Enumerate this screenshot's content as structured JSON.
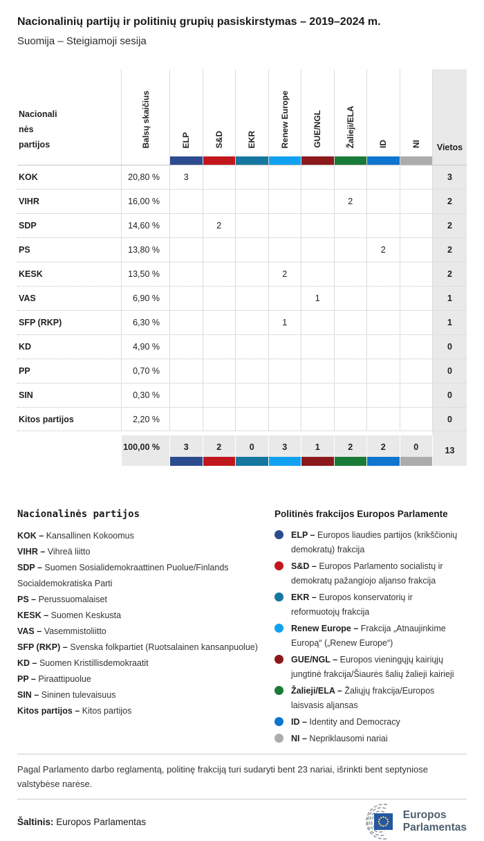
{
  "title": "Nacionalinių partijų ir politinių grupių pasiskirstymas – 2019–2024 m.",
  "subtitle": "Suomija – Steigiamoji sesija",
  "table": {
    "first_col_header": "Nacionali\nnės\npartijos",
    "votes_header": "Balsų skaičius",
    "seats_header": "Vietos",
    "groups": [
      {
        "label": "ELP",
        "color": "#2C4C8F"
      },
      {
        "label": "S&D",
        "color": "#C2161D"
      },
      {
        "label": "EKR",
        "color": "#15779F"
      },
      {
        "label": "Renew Europe",
        "color": "#12A1F0"
      },
      {
        "label": "GUE/NGL",
        "color": "#8C191C"
      },
      {
        "label": "Žalieji/ELA",
        "color": "#197B38"
      },
      {
        "label": "ID",
        "color": "#0E76CF"
      },
      {
        "label": "NI",
        "color": "#ACACAC"
      }
    ],
    "rows": [
      {
        "party": "KOK",
        "votes": "20,80 %",
        "cells": [
          "3",
          "",
          "",
          "",
          "",
          "",
          "",
          ""
        ],
        "seats": "3"
      },
      {
        "party": "VIHR",
        "votes": "16,00 %",
        "cells": [
          "",
          "",
          "",
          "",
          "",
          "2",
          "",
          ""
        ],
        "seats": "2"
      },
      {
        "party": "SDP",
        "votes": "14,60 %",
        "cells": [
          "",
          "2",
          "",
          "",
          "",
          "",
          "",
          ""
        ],
        "seats": "2"
      },
      {
        "party": "PS",
        "votes": "13,80 %",
        "cells": [
          "",
          "",
          "",
          "",
          "",
          "",
          "2",
          ""
        ],
        "seats": "2"
      },
      {
        "party": "KESK",
        "votes": "13,50 %",
        "cells": [
          "",
          "",
          "",
          "2",
          "",
          "",
          "",
          ""
        ],
        "seats": "2"
      },
      {
        "party": "VAS",
        "votes": "6,90 %",
        "cells": [
          "",
          "",
          "",
          "",
          "1",
          "",
          "",
          ""
        ],
        "seats": "1"
      },
      {
        "party": "SFP (RKP)",
        "votes": "6,30 %",
        "cells": [
          "",
          "",
          "",
          "1",
          "",
          "",
          "",
          ""
        ],
        "seats": "1"
      },
      {
        "party": "KD",
        "votes": "4,90 %",
        "cells": [
          "",
          "",
          "",
          "",
          "",
          "",
          "",
          ""
        ],
        "seats": "0"
      },
      {
        "party": "PP",
        "votes": "0,70 %",
        "cells": [
          "",
          "",
          "",
          "",
          "",
          "",
          "",
          ""
        ],
        "seats": "0"
      },
      {
        "party": "SIN",
        "votes": "0,30 %",
        "cells": [
          "",
          "",
          "",
          "",
          "",
          "",
          "",
          ""
        ],
        "seats": "0"
      },
      {
        "party": "Kitos partijos",
        "votes": "2,20 %",
        "cells": [
          "",
          "",
          "",
          "",
          "",
          "",
          "",
          ""
        ],
        "seats": "0"
      }
    ],
    "total": {
      "votes": "100,00 %",
      "cells": [
        "3",
        "2",
        "0",
        "3",
        "1",
        "2",
        "2",
        "0"
      ],
      "seats": "13"
    }
  },
  "national_legend": {
    "title": "Nacionalinės partijos",
    "items": [
      {
        "abbr": "KOK –",
        "name": "Kansallinen Kokoomus"
      },
      {
        "abbr": "VIHR –",
        "name": "Vihreä liitto"
      },
      {
        "abbr": "SDP –",
        "name": "Suomen Sosialidemokraattinen Puolue/Finlands Socialdemokratiska Parti"
      },
      {
        "abbr": "PS –",
        "name": "Perussuomalaiset"
      },
      {
        "abbr": "KESK –",
        "name": "Suomen Keskusta"
      },
      {
        "abbr": "VAS –",
        "name": "Vasemmistoliitto"
      },
      {
        "abbr": "SFP (RKP) –",
        "name": "Svenska folkpartiet (Ruotsalainen kansanpuolue)"
      },
      {
        "abbr": "KD –",
        "name": "Suomen Kristillisdemokraatit"
      },
      {
        "abbr": "PP –",
        "name": "Piraattipuolue"
      },
      {
        "abbr": "SIN –",
        "name": "Sininen tulevaisuus"
      },
      {
        "abbr": "Kitos partijos –",
        "name": "Kitos partijos"
      }
    ]
  },
  "groups_legend": {
    "title": "Politinės frakcijos Europos Parlamente",
    "items": [
      {
        "abbr": "ELP –",
        "name": "Europos liaudies partijos (krikščionių demokratų) frakcija",
        "color": "#2C4C8F"
      },
      {
        "abbr": "S&D –",
        "name": "Europos Parlamento socialistų ir demokratų pažangiojo aljanso frakcija",
        "color": "#C2161D"
      },
      {
        "abbr": "EKR –",
        "name": "Europos konservatorių ir reformuotojų frakcija",
        "color": "#15779F"
      },
      {
        "abbr": "Renew Europe –",
        "name": "Frakcija „Atnaujinkime Europą“ („Renew Europe“)",
        "color": "#12A1F0"
      },
      {
        "abbr": "GUE/NGL –",
        "name": "Europos vieningųjų kairiųjų jungtinė frakcija/Šiaurės šalių žalieji kairieji",
        "color": "#8C191C"
      },
      {
        "abbr": "Žalieji/ELA –",
        "name": "Žaliųjų frakcija/Europos laisvasis aljansas",
        "color": "#197B38"
      },
      {
        "abbr": "ID –",
        "name": "Identity and Democracy",
        "color": "#0E76CF"
      },
      {
        "abbr": "NI –",
        "name": "Nepriklausomi nariai",
        "color": "#ACACAC"
      }
    ]
  },
  "footnote": "Pagal Parlamento darbo reglamentą, politinę frakciją turi sudaryti bent 23 nariai, išrinkti bent septyniose valstybėse narėse.",
  "source": {
    "label": "Šaltinis:",
    "value": "Europos Parlamentas"
  },
  "logo": {
    "line1": "Europos",
    "line2": "Parlamentas"
  },
  "chart_data": {
    "type": "table",
    "title": "Nacionalinių partijų ir politinių grupių pasiskirstymas – 2019–2024 m.",
    "subtitle": "Suomija – Steigiamoji sesija",
    "columns": [
      "Nacionalinės partijos",
      "Balsų skaičius",
      "ELP",
      "S&D",
      "EKR",
      "Renew Europe",
      "GUE/NGL",
      "Žalieji/ELA",
      "ID",
      "NI",
      "Vietos"
    ],
    "rows": [
      [
        "KOK",
        "20,80 %",
        3,
        null,
        null,
        null,
        null,
        null,
        null,
        null,
        3
      ],
      [
        "VIHR",
        "16,00 %",
        null,
        null,
        null,
        null,
        null,
        2,
        null,
        null,
        2
      ],
      [
        "SDP",
        "14,60 %",
        null,
        2,
        null,
        null,
        null,
        null,
        null,
        null,
        2
      ],
      [
        "PS",
        "13,80 %",
        null,
        null,
        null,
        null,
        null,
        null,
        2,
        null,
        2
      ],
      [
        "KESK",
        "13,50 %",
        null,
        null,
        null,
        2,
        null,
        null,
        null,
        null,
        2
      ],
      [
        "VAS",
        "6,90 %",
        null,
        null,
        null,
        null,
        1,
        null,
        null,
        null,
        1
      ],
      [
        "SFP (RKP)",
        "6,30 %",
        null,
        null,
        null,
        1,
        null,
        null,
        null,
        null,
        1
      ],
      [
        "KD",
        "4,90 %",
        null,
        null,
        null,
        null,
        null,
        null,
        null,
        null,
        0
      ],
      [
        "PP",
        "0,70 %",
        null,
        null,
        null,
        null,
        null,
        null,
        null,
        null,
        0
      ],
      [
        "SIN",
        "0,30 %",
        null,
        null,
        null,
        null,
        null,
        null,
        null,
        null,
        0
      ],
      [
        "Kitos partijos",
        "2,20 %",
        null,
        null,
        null,
        null,
        null,
        null,
        null,
        null,
        0
      ]
    ],
    "total_row": [
      "",
      "100,00 %",
      3,
      2,
      0,
      3,
      1,
      2,
      2,
      0,
      13
    ],
    "group_colors": {
      "ELP": "#2C4C8F",
      "S&D": "#C2161D",
      "EKR": "#15779F",
      "Renew Europe": "#12A1F0",
      "GUE/NGL": "#8C191C",
      "Žalieji/ELA": "#197B38",
      "ID": "#0E76CF",
      "NI": "#ACACAC"
    }
  }
}
